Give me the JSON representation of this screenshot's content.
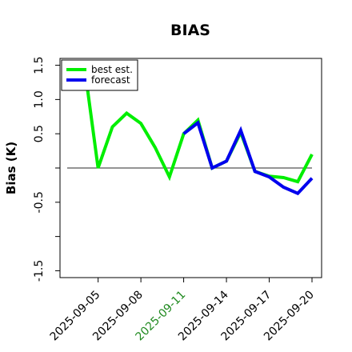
{
  "chart_data": {
    "type": "line",
    "title": "BIAS",
    "xlabel": "",
    "ylabel": "Bias (K)",
    "ylim": [
      -1.6,
      1.6
    ],
    "y_ticks": [
      -1.5,
      -1.0,
      -0.5,
      0,
      0.5,
      1.0,
      1.5
    ],
    "y_tick_labels": [
      "-1.5",
      "",
      "-0.5",
      "",
      "0.5",
      "1.0",
      "1.5"
    ],
    "x": [
      "2025-09-03",
      "2025-09-04",
      "2025-09-05",
      "2025-09-06",
      "2025-09-07",
      "2025-09-08",
      "2025-09-09",
      "2025-09-10",
      "2025-09-11",
      "2025-09-12",
      "2025-09-13",
      "2025-09-14",
      "2025-09-15",
      "2025-09-16",
      "2025-09-17",
      "2025-09-18",
      "2025-09-19",
      "2025-09-20"
    ],
    "x_tick_labels": [
      "2025-09-05",
      "2025-09-08",
      "2025-09-11",
      "2025-09-14",
      "2025-09-17",
      "2025-09-20"
    ],
    "x_tick_label_colors": [
      "#000000",
      "#000000",
      "#228B22",
      "#000000",
      "#000000",
      "#000000"
    ],
    "zero_line": 0,
    "legend": {
      "placement": "top-left"
    },
    "series": [
      {
        "name": "best est.",
        "color": "#00ee00",
        "x": [
          "2025-09-04",
          "2025-09-05",
          "2025-09-06",
          "2025-09-07",
          "2025-09-08",
          "2025-09-09",
          "2025-09-10",
          "2025-09-11",
          "2025-09-12",
          "2025-09-13",
          "2025-09-14",
          "2025-09-15",
          "2025-09-16",
          "2025-09-17",
          "2025-09-18",
          "2025-09-19",
          "2025-09-20"
        ],
        "values": [
          1.55,
          0.0,
          0.6,
          0.8,
          0.65,
          0.3,
          -0.13,
          0.5,
          0.7,
          0.0,
          0.1,
          0.52,
          -0.05,
          -0.12,
          -0.14,
          -0.2,
          0.2
        ]
      },
      {
        "name": "forecast",
        "color": "#0000ee",
        "x": [
          "2025-09-11",
          "2025-09-12",
          "2025-09-13",
          "2025-09-14",
          "2025-09-15",
          "2025-09-16",
          "2025-09-17",
          "2025-09-18",
          "2025-09-19",
          "2025-09-20"
        ],
        "values": [
          0.5,
          0.66,
          0.0,
          0.1,
          0.55,
          -0.05,
          -0.13,
          -0.28,
          -0.37,
          -0.15
        ]
      }
    ]
  }
}
